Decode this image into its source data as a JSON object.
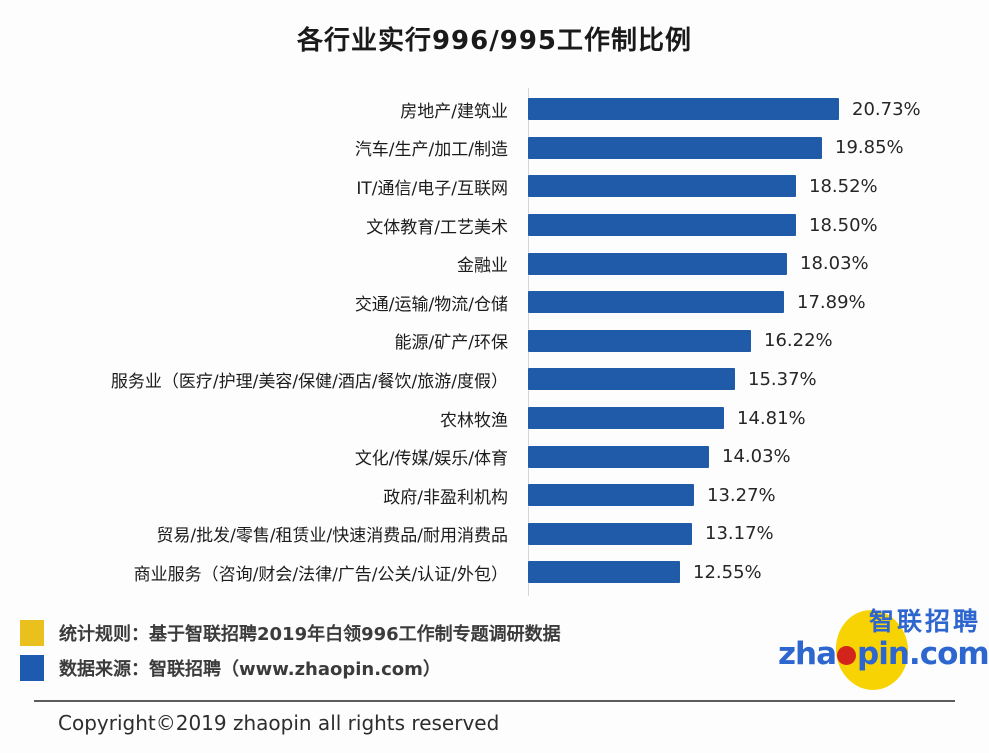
{
  "title": "各行业实行996/995工作制比例",
  "chart_data": {
    "type": "bar",
    "orientation": "horizontal",
    "title": "各行业实行996/995工作制比例",
    "categories": [
      "房地产/建筑业",
      "汽车/生产/加工/制造",
      "IT/通信/电子/互联网",
      "文体教育/工艺美术",
      "金融业",
      "交通/运输/物流/仓储",
      "能源/矿产/环保",
      "服务业（医疗/护理/美容/保健/酒店/餐饮/旅游/度假）",
      "农林牧渔",
      "文化/传媒/娱乐/体育",
      "政府/非盈利机构",
      "贸易/批发/零售/租赁业/快速消费品/耐用消费品",
      "商业服务（咨询/财会/法律/广告/公关/认证/外包）"
    ],
    "values": [
      20.73,
      19.85,
      18.52,
      18.5,
      18.03,
      17.89,
      16.22,
      15.37,
      14.81,
      14.03,
      13.27,
      13.17,
      12.55
    ],
    "value_labels": [
      "20.73%",
      "19.85%",
      "18.52%",
      "18.50%",
      "18.03%",
      "17.89%",
      "16.22%",
      "15.37%",
      "14.81%",
      "14.03%",
      "13.27%",
      "13.17%",
      "12.55%"
    ],
    "unit": "%",
    "xlim": [
      4.7,
      21.2
    ],
    "grid": false,
    "legend_position": "none",
    "data_labels": true
  },
  "legend": {
    "items": [
      {
        "swatch": "yellow-square",
        "text": "统计规则：基于智联招聘2019年白领996工作制专题调研数据"
      },
      {
        "swatch": "blue-square",
        "text": "数据来源：智联招聘（www.zhaopin.com）"
      }
    ]
  },
  "logo": {
    "chinese_name": "智联招聘",
    "latin_prefix": "zha",
    "latin_suffix": "pin.com"
  },
  "footer": {
    "copyright": "Copyright©2019 zhaopin all rights reserved"
  },
  "colors": {
    "bar": "#1f5ba8",
    "value_text": "#262626",
    "legend_yellow": "#eac11c",
    "legend_blue": "#1e5aad",
    "logo_blue": "#2e66d0",
    "logo_yellow": "#f8d303",
    "logo_red": "#d3241b"
  }
}
